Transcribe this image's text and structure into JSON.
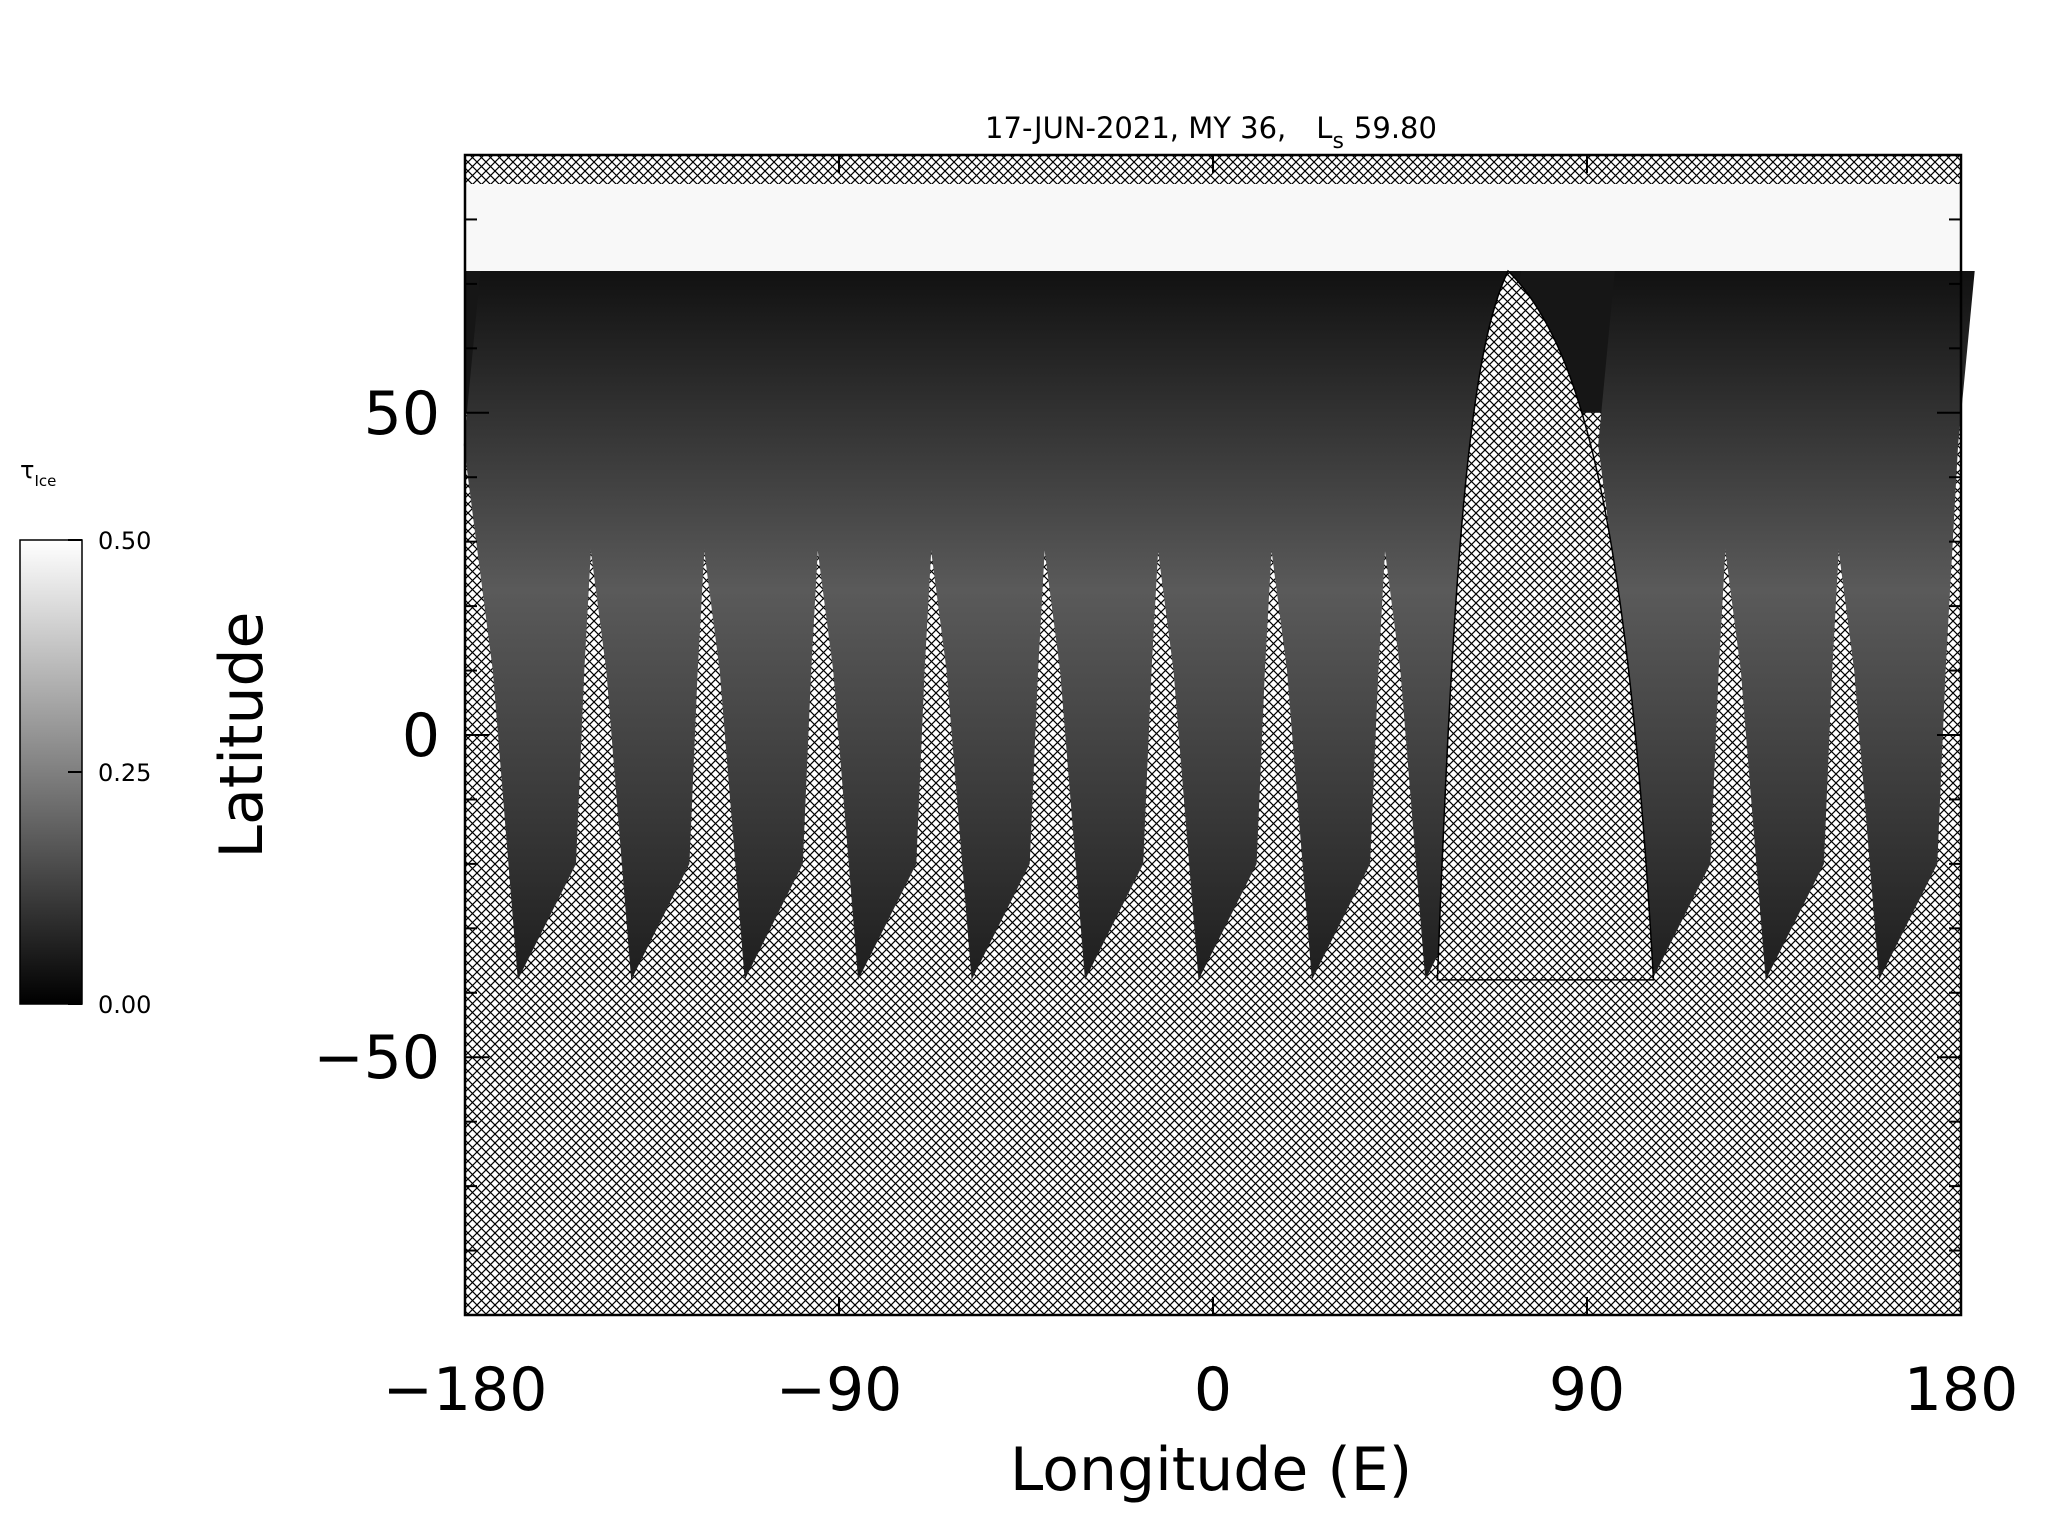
{
  "chart_data": {
    "type": "map",
    "title": "17-JUN-2021, MY 36,",
    "title_ls": {
      "symbol": "L",
      "subscript": "s",
      "value": "59.80"
    },
    "xlabel": "Longitude (E)",
    "ylabel": "Latitude",
    "xlim": [
      -180,
      180
    ],
    "ylim": [
      -90,
      90
    ],
    "xticks": [
      {
        "value": -180,
        "label": "−180"
      },
      {
        "value": -90,
        "label": "−90"
      },
      0,
      90,
      180
    ],
    "yticks": [
      {
        "value": -50,
        "label": "−50"
      },
      0,
      50
    ],
    "yminorticks": [
      -80,
      -70,
      -60,
      -40,
      -30,
      -20,
      -10,
      10,
      20,
      30,
      40,
      60,
      70,
      80
    ],
    "colorbar": {
      "label": "τ",
      "label_subscript": "Ice",
      "clim": [
        0,
        0.5
      ],
      "ticks": [
        {
          "value": 0,
          "label": "0.00"
        },
        {
          "value": 0.25,
          "label": "0.25"
        },
        {
          "value": 0.5,
          "label": "0.50"
        }
      ],
      "colors": [
        "#000000",
        "#ffffff"
      ]
    }
  }
}
